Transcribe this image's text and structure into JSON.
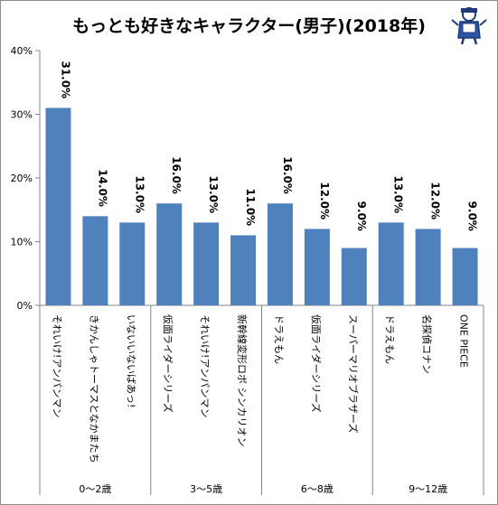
{
  "title": "もっとも好きなキャラクター(男子)(2018年)",
  "chart_data": {
    "type": "bar",
    "title": "もっとも好きなキャラクター(男子)(2018年)",
    "ylim": [
      0,
      40
    ],
    "yticks": [
      "0%",
      "10%",
      "20%",
      "30%",
      "40%"
    ],
    "grid": false,
    "bar_color": "#4f81bd",
    "categories": [
      "それいけ!アンパンマン",
      "きかんしゃトーマスとなかまたち",
      "いないいないばあっ!",
      "仮面ライダーシリーズ",
      "それいけ!アンパンマン",
      "新幹線変形ロボ シンカリオン",
      "ドラえもん",
      "仮面ライダーシリーズ",
      "スーパーマリオブラザーズ",
      "ドラえもん",
      "名探偵コナン",
      "ONE PIECE"
    ],
    "values": [
      31.0,
      14.0,
      13.0,
      16.0,
      13.0,
      11.0,
      16.0,
      12.0,
      9.0,
      13.0,
      12.0,
      9.0
    ],
    "value_labels": [
      "31.0%",
      "14.0%",
      "13.0%",
      "16.0%",
      "13.0%",
      "11.0%",
      "16.0%",
      "12.0%",
      "9.0%",
      "13.0%",
      "12.0%",
      "9.0%"
    ],
    "groups": [
      {
        "label": "0～2歳",
        "count": 3
      },
      {
        "label": "3～5歳",
        "count": 3
      },
      {
        "label": "6～8歳",
        "count": 3
      },
      {
        "label": "9～12歳",
        "count": 3
      }
    ]
  }
}
